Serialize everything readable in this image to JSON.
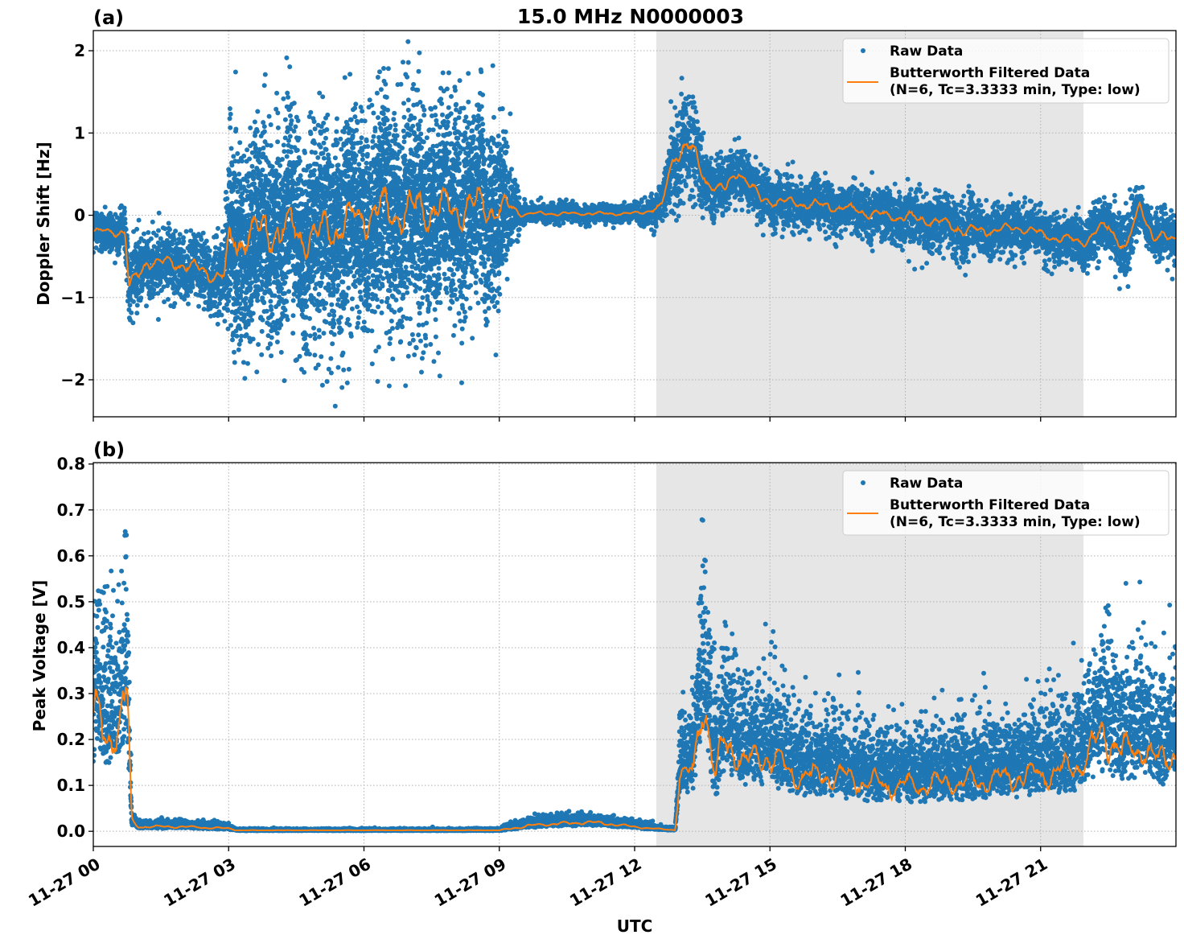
{
  "figure": {
    "title": "15.0 MHz N0000003",
    "xlabel": "UTC"
  },
  "chart_data": [
    {
      "type": "scatter",
      "panel_label": "(a)",
      "title": "15.0 MHz N0000003",
      "xlabel": "UTC",
      "ylabel": "Doppler Shift [Hz]",
      "x_units": "hours since 11-27 00 UTC",
      "xlim": [
        0,
        24
      ],
      "ylim": [
        -2.45,
        2.245
      ],
      "x_ticks": [
        0,
        3,
        6,
        9,
        12,
        15,
        18,
        21
      ],
      "x_tick_labels": [
        "11-27 00",
        "11-27 03",
        "11-27 06",
        "11-27 09",
        "11-27 12",
        "11-27 15",
        "11-27 18",
        "11-27 21"
      ],
      "y_ticks": [
        -2,
        -1,
        0,
        1,
        2
      ],
      "y_tick_labels": [
        "−2",
        "−1",
        "0",
        "1",
        "2"
      ],
      "grid": true,
      "shaded_interval": [
        12.48,
        21.95
      ],
      "legend": {
        "placement": "upper right",
        "entries": [
          "Raw Data",
          "Butterworth Filtered Data",
          "(N=6, Tc=3.3333 min, Type: low)"
        ]
      },
      "series": [
        {
          "name": "Raw Data",
          "style": "points",
          "color": "#1f77b4",
          "envelope": {
            "x": [
              0,
              0.7,
              0.8,
              1.2,
              2.0,
              2.9,
              3.0,
              4.0,
              5.0,
              6.0,
              7.0,
              8.0,
              9.0,
              9.4,
              9.5,
              10.5,
              12.0,
              12.6,
              12.9,
              13.2,
              13.6,
              14.0,
              14.3,
              14.8,
              15.5,
              16.5,
              17.5,
              18.5,
              19.5,
              20.5,
              21.5,
              22.0,
              22.5,
              22.9,
              23.2,
              23.5,
              24.0
            ],
            "center": [
              -0.2,
              -0.2,
              -0.9,
              -0.55,
              -0.6,
              -0.75,
              -0.35,
              -0.15,
              -0.25,
              0.0,
              0.05,
              0.1,
              0.1,
              0.05,
              0.02,
              0.02,
              0.02,
              0.1,
              0.8,
              0.85,
              0.4,
              0.3,
              0.55,
              0.2,
              0.15,
              0.1,
              0.0,
              -0.05,
              -0.2,
              -0.15,
              -0.3,
              -0.3,
              -0.1,
              -0.45,
              0.15,
              -0.3,
              -0.25
            ],
            "spread": [
              0.3,
              0.3,
              0.5,
              0.45,
              0.45,
              0.55,
              1.3,
              1.5,
              1.4,
              1.5,
              1.6,
              1.5,
              1.2,
              0.4,
              0.12,
              0.12,
              0.12,
              0.3,
              0.7,
              0.8,
              0.45,
              0.35,
              0.4,
              0.35,
              0.35,
              0.35,
              0.35,
              0.4,
              0.4,
              0.35,
              0.35,
              0.35,
              0.4,
              0.55,
              0.3,
              0.35,
              0.35
            ]
          }
        },
        {
          "name": "Butterworth Filtered Data",
          "style": "line",
          "color": "#ff7f0e"
        }
      ]
    },
    {
      "type": "scatter",
      "panel_label": "(b)",
      "xlabel": "UTC",
      "ylabel": "Peak Voltage [V]",
      "x_units": "hours since 11-27 00 UTC",
      "xlim": [
        0,
        24
      ],
      "ylim": [
        -0.033,
        0.803
      ],
      "x_ticks": [
        0,
        3,
        6,
        9,
        12,
        15,
        18,
        21
      ],
      "x_tick_labels": [
        "11-27 00",
        "11-27 03",
        "11-27 06",
        "11-27 09",
        "11-27 12",
        "11-27 15",
        "11-27 18",
        "11-27 21"
      ],
      "y_ticks": [
        0.0,
        0.1,
        0.2,
        0.3,
        0.4,
        0.5,
        0.6,
        0.7,
        0.8
      ],
      "y_tick_labels": [
        "0.0",
        "0.1",
        "0.2",
        "0.3",
        "0.4",
        "0.5",
        "0.6",
        "0.7",
        "0.8"
      ],
      "grid": true,
      "shaded_interval": [
        12.48,
        21.95
      ],
      "legend": {
        "placement": "upper right",
        "entries": [
          "Raw Data",
          "Butterworth Filtered Data",
          "(N=6, Tc=3.3333 min, Type: low)"
        ]
      },
      "series": [
        {
          "name": "Raw Data",
          "style": "points",
          "color": "#1f77b4",
          "envelope": {
            "x": [
              0,
              0.3,
              0.6,
              0.75,
              0.85,
              1.0,
              2.0,
              3.0,
              3.2,
              9.0,
              9.5,
              10.0,
              11.0,
              12.0,
              12.5,
              12.9,
              13.0,
              13.3,
              13.5,
              13.8,
              14.0,
              14.5,
              15.0,
              15.5,
              16.5,
              17.5,
              18.5,
              19.5,
              20.5,
              21.5,
              22.0,
              22.4,
              22.8,
              23.2,
              23.6,
              24.0
            ],
            "center": [
              0.25,
              0.2,
              0.25,
              0.3,
              0.02,
              0.01,
              0.01,
              0.006,
              0.002,
              0.002,
              0.01,
              0.015,
              0.02,
              0.01,
              0.005,
              0.003,
              0.12,
              0.13,
              0.3,
              0.12,
              0.2,
              0.15,
              0.17,
              0.12,
              0.12,
              0.1,
              0.1,
              0.11,
              0.12,
              0.13,
              0.15,
              0.22,
              0.17,
              0.19,
              0.15,
              0.18
            ],
            "spread": [
              0.35,
              0.3,
              0.3,
              0.35,
              0.02,
              0.015,
              0.015,
              0.01,
              0.004,
              0.004,
              0.02,
              0.02,
              0.02,
              0.015,
              0.008,
              0.006,
              0.15,
              0.18,
              0.4,
              0.2,
              0.28,
              0.2,
              0.22,
              0.16,
              0.15,
              0.14,
              0.14,
              0.15,
              0.16,
              0.17,
              0.18,
              0.3,
              0.2,
              0.25,
              0.2,
              0.22
            ]
          }
        },
        {
          "name": "Butterworth Filtered Data",
          "style": "line",
          "color": "#ff7f0e"
        }
      ]
    }
  ],
  "colors": {
    "raw": "#1f77b4",
    "filtered": "#ff7f0e",
    "shade": "#e6e6e6",
    "grid": "#b0b0b0"
  }
}
